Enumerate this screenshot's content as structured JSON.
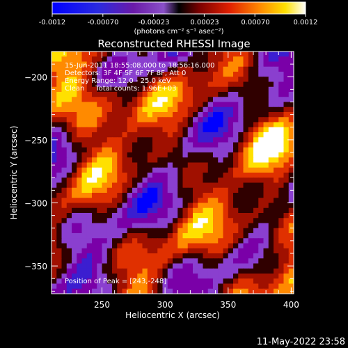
{
  "colorbar": {
    "tick_labels": [
      "-0.0012",
      "-0.00070",
      "-0.00023",
      "0.00023",
      "0.00070",
      "0.0012"
    ],
    "unit_label": "(photons cm⁻² s⁻¹ asec⁻²)"
  },
  "chart_data": {
    "type": "heatmap",
    "title": "Reconstructed RHESSI Image",
    "xlabel": "Heliocentric X (arcsec)",
    "ylabel": "Heliocentric Y (arcsec)",
    "xlim": [
      210,
      402
    ],
    "ylim": [
      -372,
      -180
    ],
    "xticks": [
      250,
      300,
      350,
      400
    ],
    "yticks": [
      -200,
      -250,
      -300,
      -350
    ],
    "color_range": [
      -0.0012,
      0.0012
    ],
    "colormap": [
      "#0000ff",
      "#3b1ed0",
      "#7a00a8",
      "#8a3fcf",
      "#300000",
      "#a01000",
      "#e03000",
      "#ff8a00",
      "#ffe000",
      "#ffffff"
    ],
    "annotations": [
      "15-Jun-2011 18:55:08.000 to 18:56:16.000",
      "Detectors: 3F 4F 5F 6F 7F 8F, Att 0",
      "Energy Range: 12.0 - 25.0 keV",
      "Clean     Total counts: 1.96E+03"
    ],
    "peak_annotation": "Position of Peak = [243,-248]",
    "peak": [
      243,
      -248
    ]
  },
  "footer": {
    "date": "11-May-2022 23:58"
  }
}
